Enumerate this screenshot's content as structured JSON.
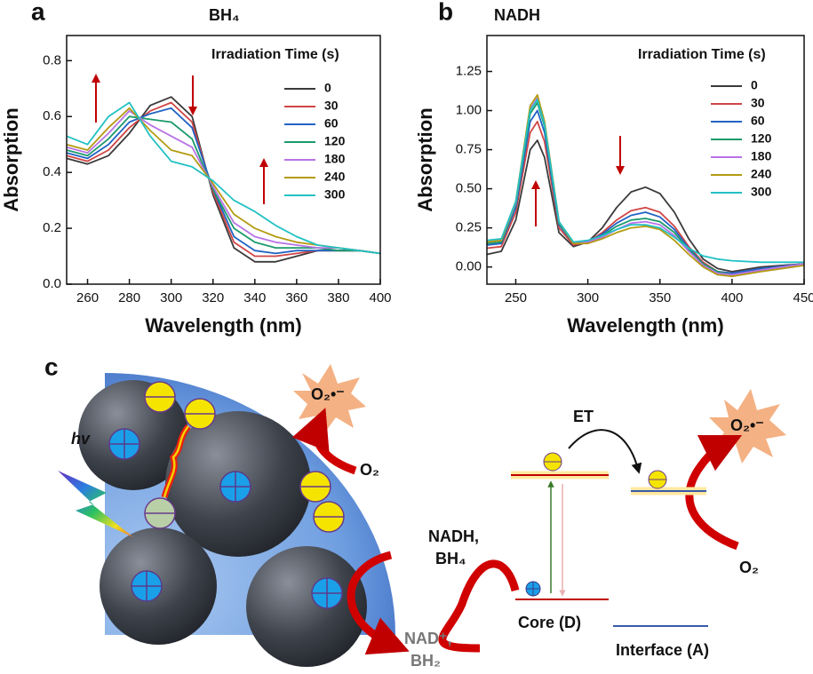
{
  "chart_data": [
    {
      "type": "line",
      "panel": "a",
      "title": "BH₄",
      "xlabel": "Wavelength (nm)",
      "ylabel": "Absorption",
      "legend_title": "Irradiation Time (s)",
      "x": [
        250,
        260,
        270,
        280,
        290,
        300,
        310,
        320,
        330,
        340,
        350,
        360,
        370,
        380,
        390,
        400
      ],
      "xlim": [
        250,
        400
      ],
      "xticks": [
        260,
        280,
        300,
        320,
        340,
        360,
        380,
        400
      ],
      "ylim": [
        0,
        0.89
      ],
      "yticks": [
        {
          "value": 0,
          "label": "0.0"
        },
        0.2,
        0.4,
        0.6,
        0.8
      ],
      "series": [
        {
          "name": "0",
          "color": "#3a3a3a",
          "values": [
            0.45,
            0.43,
            0.46,
            0.54,
            0.64,
            0.67,
            0.6,
            0.32,
            0.13,
            0.08,
            0.08,
            0.1,
            0.12,
            0.12,
            0.12,
            0.11
          ]
        },
        {
          "name": "30",
          "color": "#d04545",
          "values": [
            0.46,
            0.44,
            0.48,
            0.56,
            0.62,
            0.65,
            0.58,
            0.33,
            0.15,
            0.1,
            0.1,
            0.11,
            0.12,
            0.12,
            0.12,
            0.11
          ]
        },
        {
          "name": "60",
          "color": "#2163c4",
          "values": [
            0.47,
            0.45,
            0.5,
            0.58,
            0.61,
            0.63,
            0.56,
            0.34,
            0.17,
            0.12,
            0.11,
            0.12,
            0.12,
            0.12,
            0.12,
            0.11
          ]
        },
        {
          "name": "120",
          "color": "#1b9a6b",
          "values": [
            0.48,
            0.46,
            0.52,
            0.6,
            0.59,
            0.58,
            0.52,
            0.34,
            0.2,
            0.15,
            0.13,
            0.13,
            0.13,
            0.12,
            0.12,
            0.11
          ]
        },
        {
          "name": "180",
          "color": "#b873e6",
          "values": [
            0.49,
            0.47,
            0.54,
            0.62,
            0.57,
            0.53,
            0.49,
            0.35,
            0.22,
            0.17,
            0.15,
            0.14,
            0.13,
            0.13,
            0.12,
            0.11
          ]
        },
        {
          "name": "240",
          "color": "#b39b12",
          "values": [
            0.5,
            0.48,
            0.56,
            0.63,
            0.55,
            0.48,
            0.46,
            0.36,
            0.25,
            0.2,
            0.17,
            0.15,
            0.14,
            0.13,
            0.12,
            0.11
          ]
        },
        {
          "name": "300",
          "color": "#22c1c3",
          "values": [
            0.53,
            0.5,
            0.6,
            0.65,
            0.53,
            0.44,
            0.42,
            0.37,
            0.3,
            0.26,
            0.21,
            0.17,
            0.14,
            0.13,
            0.12,
            0.11
          ]
        }
      ]
    },
    {
      "type": "line",
      "panel": "b",
      "title": "NADH",
      "xlabel": "Wavelength (nm)",
      "ylabel": "Absorption",
      "legend_title": "Irradiation Time (s)",
      "x": [
        230,
        240,
        250,
        260,
        265,
        270,
        280,
        290,
        300,
        310,
        320,
        330,
        340,
        350,
        360,
        370,
        380,
        390,
        400,
        420,
        450
      ],
      "xlim": [
        230,
        450
      ],
      "xticks": [
        250,
        300,
        350,
        400,
        450
      ],
      "ylim": [
        -0.11,
        1.48
      ],
      "yticks": [
        {
          "value": 0,
          "label": "0.00"
        },
        0.25,
        {
          "value": 0.5,
          "label": "0.50"
        },
        0.75,
        {
          "value": 1,
          "label": "1.00"
        },
        1.25
      ],
      "series": [
        {
          "name": "0",
          "color": "#3a3a3a",
          "values": [
            0.08,
            0.1,
            0.3,
            0.75,
            0.81,
            0.7,
            0.22,
            0.13,
            0.16,
            0.25,
            0.38,
            0.48,
            0.51,
            0.47,
            0.35,
            0.18,
            0.05,
            -0.01,
            -0.03,
            0.0,
            0.02
          ]
        },
        {
          "name": "30",
          "color": "#d04545",
          "values": [
            0.12,
            0.13,
            0.35,
            0.86,
            0.93,
            0.8,
            0.25,
            0.14,
            0.16,
            0.22,
            0.3,
            0.36,
            0.38,
            0.35,
            0.26,
            0.13,
            0.03,
            -0.03,
            -0.04,
            -0.01,
            0.02
          ]
        },
        {
          "name": "60",
          "color": "#2163c4",
          "values": [
            0.14,
            0.15,
            0.38,
            0.93,
            1.0,
            0.86,
            0.27,
            0.15,
            0.16,
            0.21,
            0.28,
            0.33,
            0.35,
            0.32,
            0.24,
            0.12,
            0.02,
            -0.03,
            -0.04,
            -0.01,
            0.02
          ]
        },
        {
          "name": "120",
          "color": "#1b9a6b",
          "values": [
            0.15,
            0.16,
            0.4,
            0.98,
            1.05,
            0.9,
            0.28,
            0.15,
            0.16,
            0.2,
            0.26,
            0.3,
            0.31,
            0.29,
            0.22,
            0.11,
            0.02,
            -0.03,
            -0.05,
            -0.02,
            0.02
          ]
        },
        {
          "name": "180",
          "color": "#b873e6",
          "values": [
            0.16,
            0.17,
            0.41,
            1.01,
            1.08,
            0.92,
            0.29,
            0.15,
            0.16,
            0.19,
            0.24,
            0.28,
            0.29,
            0.27,
            0.2,
            0.1,
            0.01,
            -0.04,
            -0.05,
            -0.02,
            0.02
          ]
        },
        {
          "name": "240",
          "color": "#b39b12",
          "values": [
            0.16,
            0.17,
            0.42,
            1.03,
            1.1,
            0.93,
            0.29,
            0.15,
            0.15,
            0.18,
            0.22,
            0.25,
            0.26,
            0.24,
            0.17,
            0.08,
            0.0,
            -0.05,
            -0.06,
            -0.03,
            0.01
          ]
        },
        {
          "name": "300",
          "color": "#22c1c3",
          "values": [
            0.17,
            0.18,
            0.42,
            1.0,
            1.07,
            0.91,
            0.29,
            0.16,
            0.17,
            0.2,
            0.24,
            0.27,
            0.27,
            0.25,
            0.19,
            0.12,
            0.07,
            0.05,
            0.04,
            0.03,
            0.03
          ]
        }
      ]
    }
  ],
  "diagram": {
    "panel": "c",
    "hv": "hv",
    "superoxide_left": "O₂•⁻",
    "oxygen_left": "O₂",
    "reductant_1": "NADH,",
    "reductant_2": "BH₄",
    "product_1": "NAD⁺,",
    "product_2": "BH₂",
    "et": "ET",
    "core": "Core (D)",
    "interface": "Interface (A)",
    "superoxide_right": "O₂•⁻",
    "oxygen_right": "O₂"
  }
}
